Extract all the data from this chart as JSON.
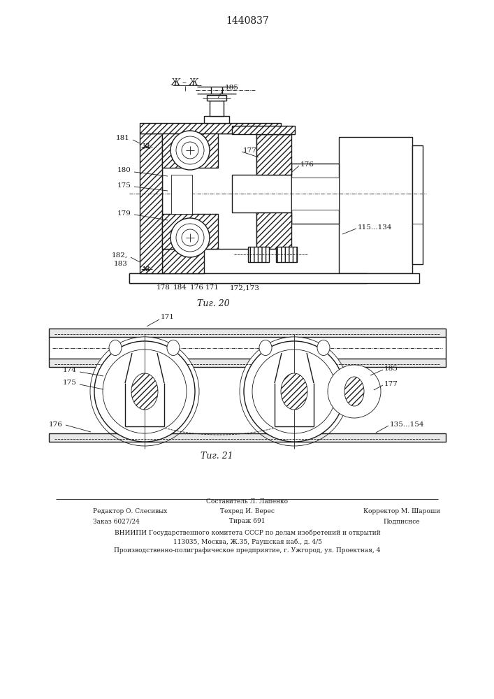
{
  "patent_number": "1440837",
  "fig20_caption": "Τиг. 20",
  "fig21_caption": "Τиг. 21",
  "section_label": "Ж – Ж",
  "line_color": "#1a1a1a",
  "footer_line1_col1": "Редактор О. Слесивых",
  "footer_line2_col1": "Заказ 6027/24",
  "footer_line1_col2": "Составитель Л. Лапенко",
  "footer_line2_col2": "Техред И. Верес",
  "footer_line3_col2": "Тираж 691",
  "footer_line1_col3": "Корректор М. Шароши",
  "footer_line2_col3": "Подписнсе",
  "footer_vnipi": "ВНИИПИ Государственного комитета СССР по делам изобретений и открытий",
  "footer_address": "113035, Москва, Ж․35, Раушская наб., д. 4/5",
  "footer_enterprise": "Производственно-полиграфическое предприятие, г. Ужгород, ул. Проектная, 4"
}
